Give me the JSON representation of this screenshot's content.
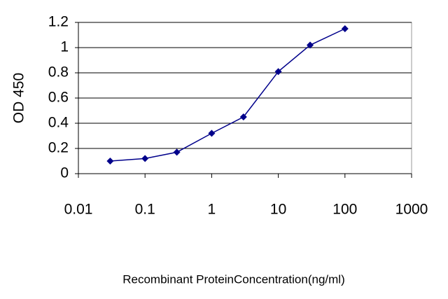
{
  "chart_data": {
    "type": "line",
    "x_label": "Recombinant ProteinConcentration(ng/ml)",
    "y_label": "OD 450",
    "x": [
      0.03,
      0.1,
      0.3,
      1,
      3,
      10,
      30,
      100
    ],
    "series": [
      {
        "color": "#00008b",
        "values": [
          0.1,
          0.12,
          0.17,
          0.32,
          0.45,
          0.81,
          1.02,
          1.15
        ]
      }
    ],
    "xscale": "log",
    "xlim": [
      0.01,
      1000
    ],
    "xticks": [
      0.01,
      0.1,
      1,
      10,
      100,
      1000
    ],
    "ylim": [
      0,
      1.2
    ],
    "yticks": [
      0,
      0.2,
      0.4,
      0.6,
      0.8,
      1,
      1.2
    ],
    "grid": true
  }
}
